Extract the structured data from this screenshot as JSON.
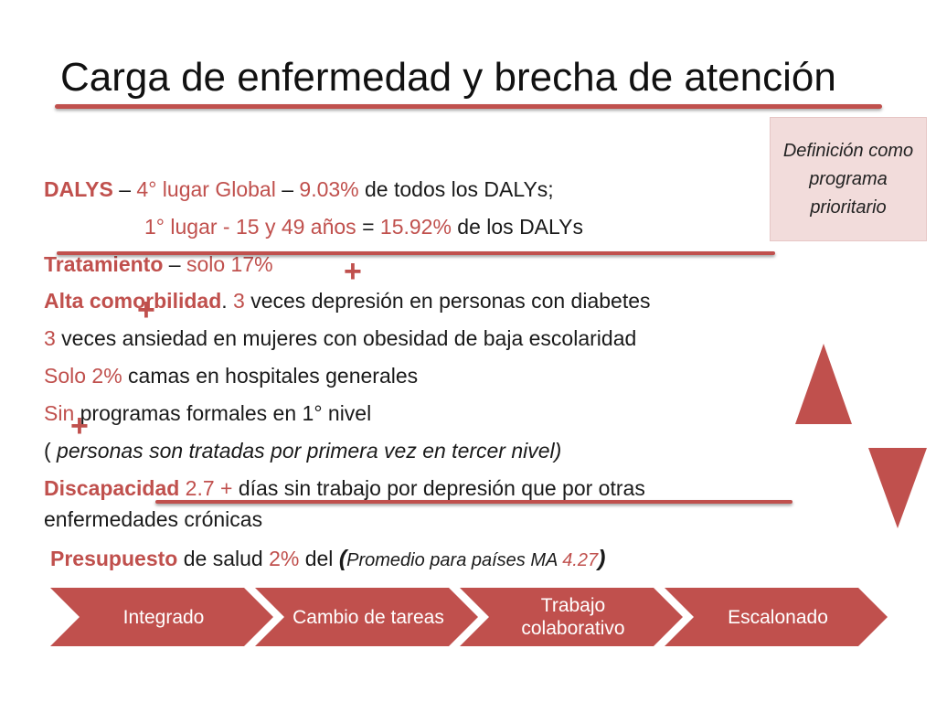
{
  "slide": {
    "title": "Carga de enfermedad y brecha de atención",
    "definition_box": "Definición como programa prioritario"
  },
  "lines": [
    {
      "parts": [
        "DALYS",
        " – ",
        "4° lugar Global",
        " – ",
        "9.03%",
        " de todos los DALYs;"
      ]
    },
    {
      "parts": [
        "1° lugar - ",
        "15 y 49 años",
        " = ",
        "15.92%",
        " de los DALYs"
      ]
    },
    {
      "parts": [
        "Tratamiento",
        " – ",
        "solo 17%"
      ]
    },
    {
      "parts": [
        "Alta comorbilidad",
        ". ",
        "3",
        " veces     depresión en personas con diabetes"
      ]
    },
    {
      "parts": [
        "3",
        " veces    ansiedad en mujeres con obesidad de baja escolaridad"
      ]
    },
    {
      "parts": [
        "Solo 2%",
        " camas en hospitales generales"
      ]
    },
    {
      "parts": [
        "Sin",
        " programas  formales en 1° nivel"
      ]
    },
    {
      "parts": [
        "(",
        "      personas son tratadas por primera vez en tercer nivel)"
      ]
    },
    {
      "parts": [
        "Discapacidad",
        " 2.7 +",
        " días sin trabajo por depresión que por otras"
      ]
    },
    {
      "parts": [
        "enfermedades crónicas"
      ]
    },
    {
      "parts": [
        "Presupuesto",
        " de salud ",
        "2%",
        " del ",
        "(",
        "Promedio para países MA  ",
        "4.27",
        ")"
      ]
    }
  ],
  "plus_signs": [
    "+",
    "+",
    "+"
  ],
  "process": {
    "steps": [
      "Integrado",
      "Cambio de tareas",
      "Trabajo colaborativo",
      "Escalonado"
    ]
  },
  "colors": {
    "accent": "#c0504d",
    "definition_bg": "#f2dcdb",
    "text": "#1a1a1a"
  }
}
